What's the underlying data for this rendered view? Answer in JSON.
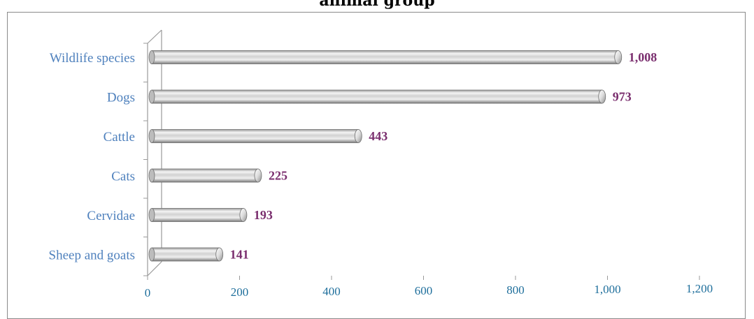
{
  "chart_data": {
    "type": "bar",
    "orientation": "horizontal",
    "title": "animal group",
    "categories": [
      "Wildlife species",
      "Dogs",
      "Cattle",
      "Cats",
      "Cervidae",
      "Sheep and goats"
    ],
    "values": [
      1008,
      973,
      443,
      225,
      193,
      141
    ],
    "value_labels": [
      "1,008",
      "973",
      "443",
      "225",
      "193",
      "141"
    ],
    "xticks": [
      "0",
      "200",
      "400",
      "600",
      "800",
      "1,000",
      "1,200"
    ],
    "xlim": [
      0,
      1200
    ],
    "xlabel": "",
    "ylabel": "",
    "grid": false,
    "legend": "none"
  }
}
